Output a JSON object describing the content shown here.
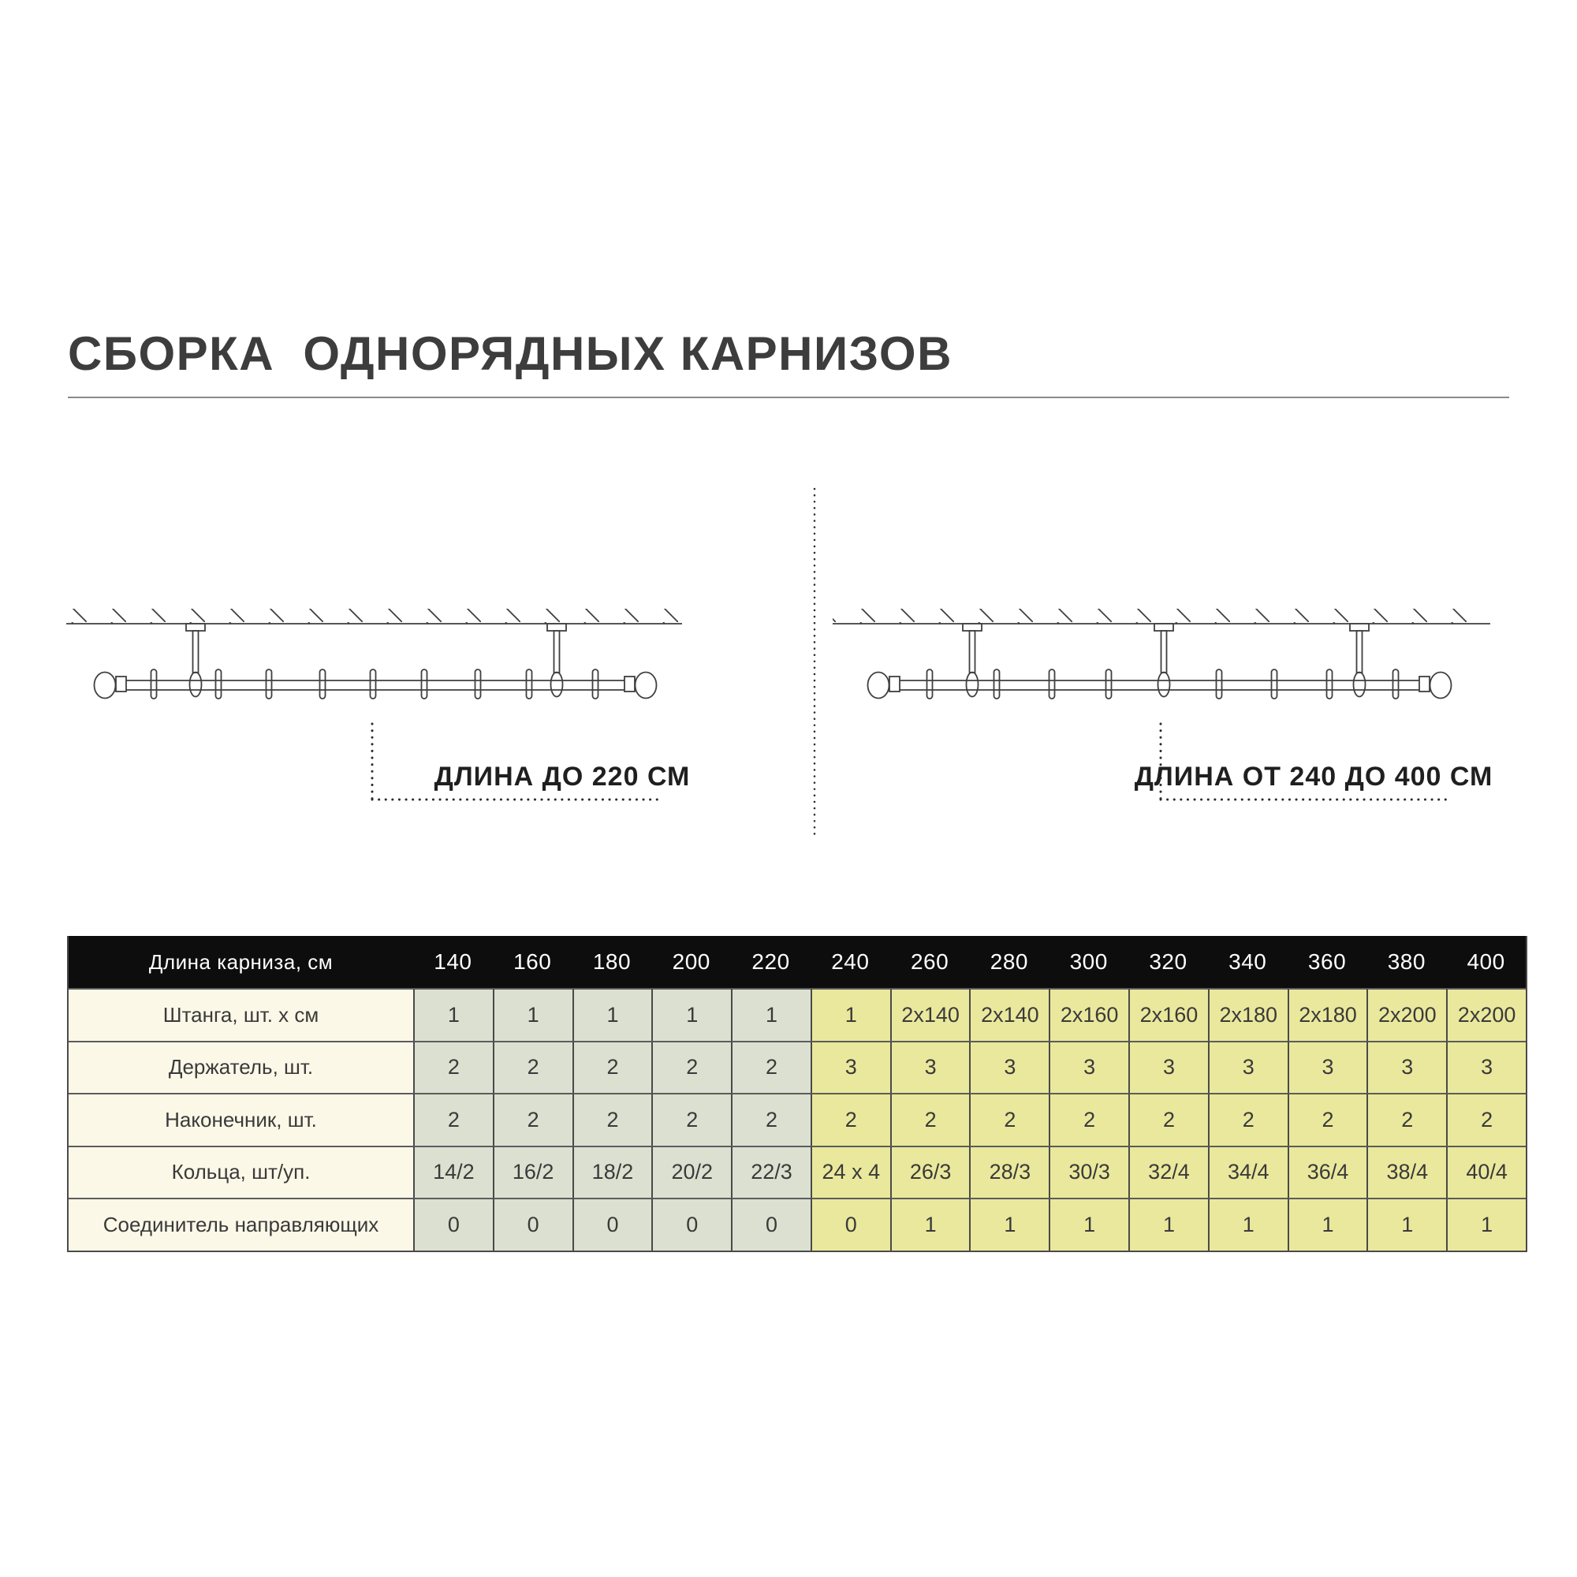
{
  "page": {
    "title": "СБОРКА  ОДНОРЯДНЫХ КАРНИЗОВ"
  },
  "diagrams": {
    "left_caption": "ДЛИНА ДО 220 СМ",
    "right_caption": "ДЛИНА ОТ 240 ДО 400 СМ"
  },
  "table": {
    "header_label": "Длина карниза, см",
    "columns": [
      "140",
      "160",
      "180",
      "200",
      "220",
      "240",
      "260",
      "280",
      "300",
      "320",
      "340",
      "360",
      "380",
      "400"
    ],
    "group1_count": 5,
    "rows": [
      {
        "label": "Штанга, шт. х см",
        "values": [
          "1",
          "1",
          "1",
          "1",
          "1",
          "1",
          "2x140",
          "2x140",
          "2x160",
          "2x160",
          "2x180",
          "2x180",
          "2x200",
          "2x200"
        ]
      },
      {
        "label": "Держатель, шт.",
        "values": [
          "2",
          "2",
          "2",
          "2",
          "2",
          "3",
          "3",
          "3",
          "3",
          "3",
          "3",
          "3",
          "3",
          "3"
        ]
      },
      {
        "label": "Наконечник, шт.",
        "values": [
          "2",
          "2",
          "2",
          "2",
          "2",
          "2",
          "2",
          "2",
          "2",
          "2",
          "2",
          "2",
          "2",
          "2"
        ]
      },
      {
        "label": "Кольца, шт/уп.",
        "values": [
          "14/2",
          "16/2",
          "18/2",
          "20/2",
          "22/3",
          "24 x 4",
          "26/3",
          "28/3",
          "30/3",
          "32/4",
          "34/4",
          "36/4",
          "38/4",
          "40/4"
        ]
      },
      {
        "label": "Соединитель направляющих",
        "values": [
          "0",
          "0",
          "0",
          "0",
          "0",
          "0",
          "1",
          "1",
          "1",
          "1",
          "1",
          "1",
          "1",
          "1"
        ]
      }
    ],
    "colors": {
      "header_bg": "#0d0d0d",
      "header_text": "#ffffff",
      "label_bg": "#fcf8e8",
      "cols_140_220_bg": "#dce0d0",
      "cols_240_400_bg": "#eae89c",
      "body_text": "#3a3a3a"
    }
  }
}
